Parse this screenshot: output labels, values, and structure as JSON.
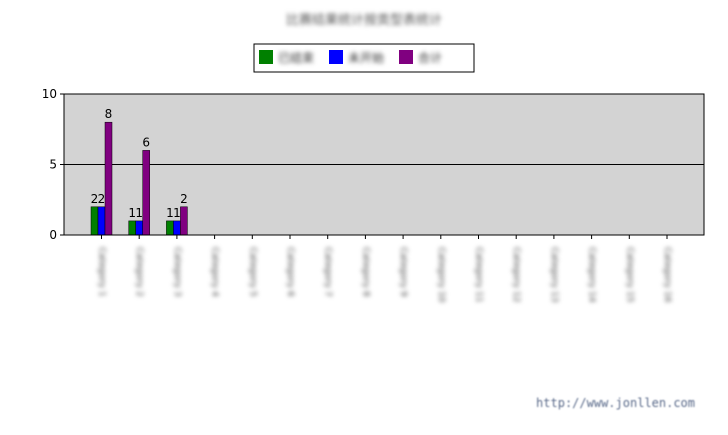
{
  "chart_data": {
    "type": "bar",
    "title": "比赛结果统计按类型表统计",
    "categories": [
      "Category 1",
      "Category 2",
      "Category 3",
      "Category 4",
      "Category 5",
      "Category 6",
      "Category 7",
      "Category 8",
      "Category 9",
      "Category 10",
      "Category 11",
      "Category 12",
      "Category 13",
      "Category 14",
      "Category 15",
      "Category 16"
    ],
    "series": [
      {
        "name": "已结束",
        "color": "#008000",
        "values": [
          2,
          1,
          1,
          0,
          0,
          0,
          0,
          0,
          0,
          0,
          0,
          0,
          0,
          0,
          0,
          0
        ]
      },
      {
        "name": "未开始",
        "color": "#0000FF",
        "values": [
          2,
          1,
          1,
          0,
          0,
          0,
          0,
          0,
          0,
          0,
          0,
          0,
          0,
          0,
          0,
          0
        ]
      },
      {
        "name": "合计",
        "color": "#800080",
        "values": [
          8,
          6,
          2,
          0,
          0,
          0,
          0,
          0,
          0,
          0,
          0,
          0,
          0,
          0,
          0,
          0
        ]
      }
    ],
    "yticks": [
      0,
      5,
      10
    ],
    "ylim": [
      0,
      10
    ],
    "plot_background": "#D3D3D3",
    "legend_position": "top-center",
    "grid": true
  },
  "watermark": "http://www.jonllen.com"
}
